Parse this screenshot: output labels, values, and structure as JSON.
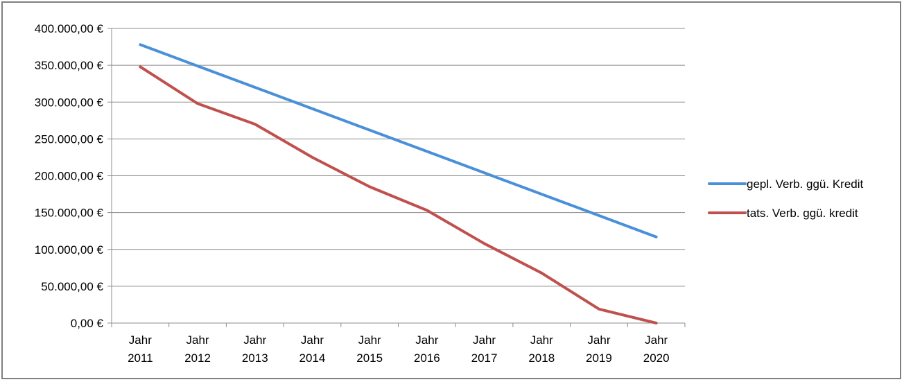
{
  "chart_data": {
    "type": "line",
    "categories": [
      [
        "Jahr",
        "2011"
      ],
      [
        "Jahr",
        "2012"
      ],
      [
        "Jahr",
        "2013"
      ],
      [
        "Jahr",
        "2014"
      ],
      [
        "Jahr",
        "2015"
      ],
      [
        "Jahr",
        "2016"
      ],
      [
        "Jahr",
        "2017"
      ],
      [
        "Jahr",
        "2018"
      ],
      [
        "Jahr",
        "2019"
      ],
      [
        "Jahr",
        "2020"
      ]
    ],
    "series": [
      {
        "name": "gepl. Verb. ggü. Kredit",
        "color": "#4a90d9",
        "values": [
          378000,
          349000,
          320000,
          291000,
          262000,
          233000,
          204000,
          175000,
          146000,
          117000
        ]
      },
      {
        "name": "tats. Verb. ggü. kredit",
        "color": "#c0504d",
        "values": [
          348000,
          298000,
          270000,
          225000,
          185000,
          153000,
          108000,
          68000,
          19000,
          0
        ]
      }
    ],
    "ylim": [
      0,
      400000
    ],
    "ytick_step": 50000,
    "ytick_labels": [
      "0,00 €",
      "50.000,00 €",
      "100.000,00 €",
      "150.000,00 €",
      "200.000,00 €",
      "250.000,00 €",
      "300.000,00 €",
      "350.000,00 €",
      "400.000,00 €"
    ],
    "grid": true,
    "legend_position": "right"
  }
}
